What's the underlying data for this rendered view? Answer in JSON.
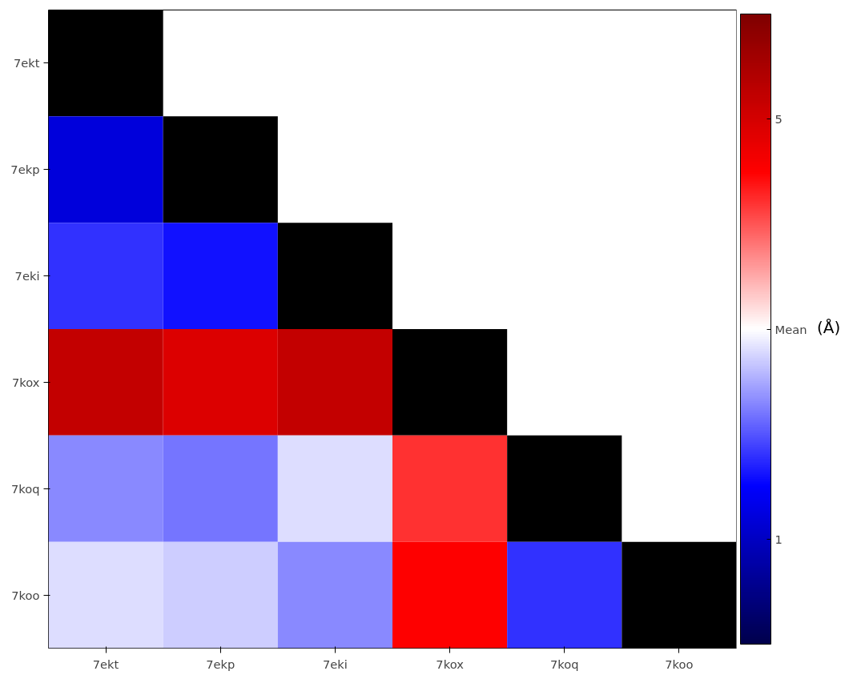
{
  "chart_data": {
    "type": "heatmap",
    "categories": [
      "7ekt",
      "7ekp",
      "7eki",
      "7kox",
      "7koq",
      "7koo"
    ],
    "y_categories": [
      "7ekt",
      "7ekp",
      "7eki",
      "7kox",
      "7koq",
      "7koo"
    ],
    "cells": [
      [
        null,
        null,
        null,
        null,
        null,
        null
      ],
      [
        1.2,
        null,
        null,
        null,
        null,
        null
      ],
      [
        1.8,
        1.6,
        null,
        null,
        null,
        null
      ],
      [
        5.2,
        4.9,
        5.2,
        null,
        null,
        null
      ],
      [
        2.3,
        2.2,
        2.8,
        4.2,
        null,
        null
      ],
      [
        2.8,
        2.7,
        2.3,
        4.5,
        1.8,
        null
      ]
    ],
    "clim": [
      0,
      6
    ],
    "cticks": [
      1,
      {
        "value": 3,
        "label": "Mean"
      },
      5
    ],
    "clabel": "(Å)",
    "grid": false
  }
}
